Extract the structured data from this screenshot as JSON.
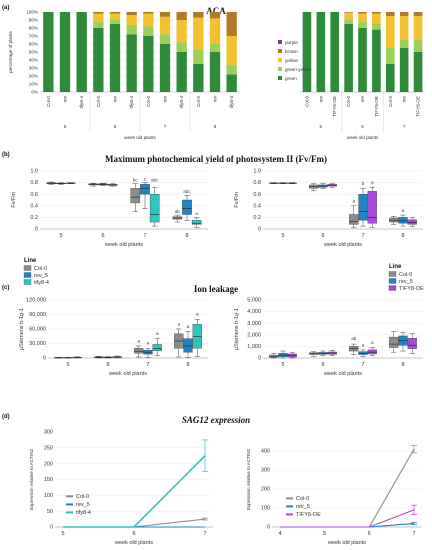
{
  "panel_labels": [
    "(a)",
    "(b)",
    "(c)",
    "(d)"
  ],
  "colors": {
    "purple": "#7f3f98",
    "brown": "#b07a2a",
    "yellow": "#f2c230",
    "green_yellow": "#9cd05a",
    "green": "#2e8b3a",
    "col0": "#8c8c8c",
    "rev": "#1f84c6",
    "tifyOE": "#a64bd8",
    "tify84": "#2ec7c0"
  },
  "chart_data": [
    {
      "id": "aca_left",
      "type": "bar",
      "stacked": true,
      "title": "ACA",
      "ylabel": "percentage of plants",
      "xlabel": "week old plants",
      "ylim": [
        0,
        100
      ],
      "yticks": [
        "0%",
        "10%",
        "20%",
        "30%",
        "40%",
        "50%",
        "60%",
        "70%",
        "80%",
        "90%",
        "100%"
      ],
      "groups": [
        "5",
        "6",
        "7",
        "8"
      ],
      "categories": [
        "Col-0",
        "rev",
        "tify8-4",
        "Col-0",
        "rev",
        "tify8-4",
        "Col-0",
        "rev",
        "tify8-4",
        "Col-0",
        "rev",
        "tify8-4"
      ],
      "series": [
        {
          "name": "green",
          "values": [
            100,
            100,
            100,
            80,
            85,
            72,
            70,
            60,
            50,
            35,
            50,
            22
          ]
        },
        {
          "name": "green-yellow",
          "values": [
            0,
            0,
            0,
            8,
            6,
            12,
            12,
            12,
            12,
            18,
            10,
            12
          ]
        },
        {
          "name": "yellow",
          "values": [
            0,
            0,
            0,
            10,
            7,
            12,
            16,
            22,
            28,
            40,
            32,
            36
          ]
        },
        {
          "name": "brown",
          "values": [
            0,
            0,
            0,
            2,
            2,
            4,
            2,
            6,
            10,
            7,
            8,
            30
          ]
        },
        {
          "name": "purple",
          "values": [
            0,
            0,
            0,
            0,
            0,
            0,
            0,
            0,
            0,
            0,
            0,
            0
          ]
        }
      ]
    },
    {
      "id": "aca_right",
      "type": "bar",
      "stacked": true,
      "xlabel": "week old plants",
      "ylim": [
        0,
        100
      ],
      "groups": [
        "5",
        "6",
        "7"
      ],
      "categories": [
        "Col-0",
        "rev",
        "TIFY8-OE",
        "Col-0",
        "rev",
        "TIFY8-OE",
        "Col-0",
        "rev",
        "TIFY8-OE"
      ],
      "series": [
        {
          "name": "green",
          "values": [
            100,
            100,
            100,
            85,
            80,
            78,
            35,
            55,
            50
          ]
        },
        {
          "name": "green-yellow",
          "values": [
            0,
            0,
            0,
            5,
            8,
            8,
            20,
            10,
            15
          ]
        },
        {
          "name": "yellow",
          "values": [
            0,
            0,
            0,
            9,
            10,
            12,
            40,
            30,
            30
          ]
        },
        {
          "name": "brown",
          "values": [
            0,
            0,
            0,
            1,
            2,
            2,
            5,
            5,
            5
          ]
        },
        {
          "name": "purple",
          "values": [
            0,
            0,
            0,
            0,
            0,
            0,
            0,
            0,
            0
          ]
        }
      ],
      "legend": [
        "purple",
        "brown",
        "yellow",
        "green-yellow",
        "green"
      ]
    },
    {
      "id": "fvfm_left",
      "type": "box",
      "title": "Maximum photochemical yield of photosystem II (Fv/Fm)",
      "ylabel": "Fv/Fm",
      "xlabel": "week old plants",
      "ylim": [
        0,
        1.0
      ],
      "yticks": [
        "0",
        "0.2",
        "0.4",
        "0.6",
        "0.8",
        "1.0"
      ],
      "groups": [
        "5",
        "6",
        "7",
        "8"
      ],
      "legend_title": "Line",
      "legend": [
        "Col-0",
        "rev_5",
        "tify8-4"
      ],
      "boxes": [
        {
          "g": 0,
          "s": 0,
          "min": 0.77,
          "q1": 0.78,
          "med": 0.79,
          "q3": 0.8,
          "max": 0.81
        },
        {
          "g": 0,
          "s": 1,
          "min": 0.77,
          "q1": 0.78,
          "med": 0.785,
          "q3": 0.79,
          "max": 0.8
        },
        {
          "g": 0,
          "s": 2,
          "min": 0.78,
          "q1": 0.785,
          "med": 0.79,
          "q3": 0.795,
          "max": 0.8
        },
        {
          "g": 1,
          "s": 0,
          "min": 0.74,
          "q1": 0.76,
          "med": 0.77,
          "q3": 0.78,
          "max": 0.79
        },
        {
          "g": 1,
          "s": 1,
          "min": 0.75,
          "q1": 0.76,
          "med": 0.77,
          "q3": 0.78,
          "max": 0.79
        },
        {
          "g": 1,
          "s": 2,
          "min": 0.74,
          "q1": 0.75,
          "med": 0.76,
          "q3": 0.77,
          "max": 0.78
        },
        {
          "g": 2,
          "s": 0,
          "min": 0.3,
          "q1": 0.45,
          "med": 0.55,
          "q3": 0.7,
          "max": 0.78
        },
        {
          "g": 2,
          "s": 1,
          "min": 0.35,
          "q1": 0.6,
          "med": 0.7,
          "q3": 0.77,
          "max": 0.8
        },
        {
          "g": 2,
          "s": 2,
          "min": 0.05,
          "q1": 0.12,
          "med": 0.25,
          "q3": 0.6,
          "max": 0.72
        },
        {
          "g": 3,
          "s": 0,
          "min": 0.12,
          "q1": 0.17,
          "med": 0.19,
          "q3": 0.21,
          "max": 0.24
        },
        {
          "g": 3,
          "s": 1,
          "min": 0.15,
          "q1": 0.25,
          "med": 0.35,
          "q3": 0.5,
          "max": 0.58
        },
        {
          "g": 3,
          "s": 2,
          "min": 0.03,
          "q1": 0.08,
          "med": 0.1,
          "q3": 0.15,
          "max": 0.2
        }
      ],
      "annotations": [
        {
          "g": 2,
          "s": 0,
          "text": "bc",
          "y": 0.8
        },
        {
          "g": 2,
          "s": 1,
          "text": "c",
          "y": 0.82
        },
        {
          "g": 2,
          "s": 2,
          "text": "abc",
          "y": 0.8
        },
        {
          "g": 3,
          "s": 0,
          "text": "ab",
          "y": 0.26
        },
        {
          "g": 3,
          "s": 1,
          "text": "abc",
          "y": 0.6
        },
        {
          "g": 3,
          "s": 2,
          "text": "a",
          "y": 0.22
        }
      ]
    },
    {
      "id": "fvfm_right",
      "type": "box",
      "ylabel": "Fv/Fm",
      "xlabel": "week old plants",
      "ylim": [
        0,
        1.0
      ],
      "yticks": [
        "0",
        "0.2",
        "0.4",
        "0.6",
        "0.8",
        "1.0"
      ],
      "groups": [
        "5",
        "6",
        "7",
        "8"
      ],
      "legend_title": "Line",
      "legend": [
        "Col-0",
        "rev_5",
        "TIFY8-OE"
      ],
      "boxes": [
        {
          "g": 0,
          "s": 0,
          "min": 0.78,
          "q1": 0.785,
          "med": 0.79,
          "q3": 0.795,
          "max": 0.8
        },
        {
          "g": 0,
          "s": 1,
          "min": 0.78,
          "q1": 0.785,
          "med": 0.79,
          "q3": 0.795,
          "max": 0.8
        },
        {
          "g": 0,
          "s": 2,
          "min": 0.78,
          "q1": 0.785,
          "med": 0.79,
          "q3": 0.795,
          "max": 0.8
        },
        {
          "g": 1,
          "s": 0,
          "min": 0.66,
          "q1": 0.7,
          "med": 0.73,
          "q3": 0.76,
          "max": 0.78
        },
        {
          "g": 1,
          "s": 1,
          "min": 0.7,
          "q1": 0.72,
          "med": 0.74,
          "q3": 0.76,
          "max": 0.78
        },
        {
          "g": 1,
          "s": 2,
          "min": 0.72,
          "q1": 0.74,
          "med": 0.75,
          "q3": 0.77,
          "max": 0.78
        },
        {
          "g": 2,
          "s": 0,
          "min": 0.03,
          "q1": 0.08,
          "med": 0.13,
          "q3": 0.25,
          "max": 0.4
        },
        {
          "g": 2,
          "s": 1,
          "min": 0.05,
          "q1": 0.15,
          "med": 0.3,
          "q3": 0.6,
          "max": 0.7
        },
        {
          "g": 2,
          "s": 2,
          "min": 0.03,
          "q1": 0.1,
          "med": 0.2,
          "q3": 0.65,
          "max": 0.72
        },
        {
          "g": 3,
          "s": 0,
          "min": 0.08,
          "q1": 0.12,
          "med": 0.15,
          "q3": 0.19,
          "max": 0.22
        },
        {
          "g": 3,
          "s": 1,
          "min": 0.05,
          "q1": 0.1,
          "med": 0.14,
          "q3": 0.2,
          "max": 0.24
        },
        {
          "g": 3,
          "s": 2,
          "min": 0.04,
          "q1": 0.08,
          "med": 0.11,
          "q3": 0.16,
          "max": 0.2
        }
      ],
      "annotations": [
        {
          "g": 2,
          "s": 0,
          "text": "a",
          "y": 0.44
        },
        {
          "g": 2,
          "s": 1,
          "text": "b",
          "y": 0.74
        },
        {
          "g": 2,
          "s": 2,
          "text": "a",
          "y": 0.76
        },
        {
          "g": 3,
          "s": 1,
          "text": "a",
          "y": 0.28
        }
      ]
    },
    {
      "id": "ion_left",
      "type": "box",
      "title": "Ion leakage",
      "ylabel": "µSiemens h-1g-1",
      "xlabel": "week old plants",
      "ylim": [
        0,
        120000
      ],
      "yticks": [
        "0",
        "30,000",
        "60,000",
        "90,000",
        "120,000"
      ],
      "groups": [
        "5",
        "6",
        "7",
        "8"
      ],
      "boxes": [
        {
          "g": 0,
          "s": 0,
          "min": 0,
          "q1": 300,
          "med": 600,
          "q3": 1000,
          "max": 1500
        },
        {
          "g": 0,
          "s": 1,
          "min": 0,
          "q1": 300,
          "med": 500,
          "q3": 900,
          "max": 1300
        },
        {
          "g": 0,
          "s": 2,
          "min": 0,
          "q1": 500,
          "med": 1000,
          "q3": 1800,
          "max": 2500
        },
        {
          "g": 1,
          "s": 0,
          "min": 0,
          "q1": 800,
          "med": 1500,
          "q3": 2500,
          "max": 3500
        },
        {
          "g": 1,
          "s": 1,
          "min": 0,
          "q1": 600,
          "med": 1200,
          "q3": 2000,
          "max": 3000
        },
        {
          "g": 1,
          "s": 2,
          "min": 0,
          "q1": 1000,
          "med": 2000,
          "q3": 3000,
          "max": 4000
        },
        {
          "g": 2,
          "s": 0,
          "min": 2000,
          "q1": 10000,
          "med": 14000,
          "q3": 20000,
          "max": 25000
        },
        {
          "g": 2,
          "s": 1,
          "min": 1000,
          "q1": 8000,
          "med": 12000,
          "q3": 16000,
          "max": 20000
        },
        {
          "g": 2,
          "s": 2,
          "min": 5000,
          "q1": 15000,
          "med": 20000,
          "q3": 28000,
          "max": 40000
        },
        {
          "g": 3,
          "s": 0,
          "min": 2000,
          "q1": 20000,
          "med": 35000,
          "q3": 50000,
          "max": 60000
        },
        {
          "g": 3,
          "s": 1,
          "min": 1000,
          "q1": 12000,
          "med": 25000,
          "q3": 40000,
          "max": 55000
        },
        {
          "g": 3,
          "s": 2,
          "min": 3000,
          "q1": 20000,
          "med": 45000,
          "q3": 70000,
          "max": 80000
        }
      ],
      "annotations": [
        {
          "g": 2,
          "s": 0,
          "text": "a",
          "y": 30000
        },
        {
          "g": 2,
          "s": 1,
          "text": "a",
          "y": 26000
        },
        {
          "g": 2,
          "s": 2,
          "text": "a",
          "y": 46000
        },
        {
          "g": 3,
          "s": 0,
          "text": "a",
          "y": 65000
        },
        {
          "g": 3,
          "s": 1,
          "text": "a",
          "y": 60000
        },
        {
          "g": 3,
          "s": 2,
          "text": "a",
          "y": 86000
        }
      ]
    },
    {
      "id": "ion_right",
      "type": "box",
      "ylabel": "µSiemens h-1g-1",
      "xlabel": "week old plants",
      "ylim": [
        0,
        5000
      ],
      "yticks": [
        "0",
        "1,000",
        "2,000",
        "3,000",
        "4,000",
        "5,000"
      ],
      "groups": [
        "5",
        "6",
        "7",
        "8"
      ],
      "boxes": [
        {
          "g": 0,
          "s": 0,
          "min": 0,
          "q1": 50,
          "med": 150,
          "q3": 250,
          "max": 400
        },
        {
          "g": 0,
          "s": 1,
          "min": 0,
          "q1": 100,
          "med": 250,
          "q3": 400,
          "max": 600
        },
        {
          "g": 0,
          "s": 2,
          "min": 0,
          "q1": 80,
          "med": 200,
          "q3": 350,
          "max": 500
        },
        {
          "g": 1,
          "s": 0,
          "min": 150,
          "q1": 300,
          "med": 380,
          "q3": 450,
          "max": 550
        },
        {
          "g": 1,
          "s": 1,
          "min": 200,
          "q1": 320,
          "med": 400,
          "q3": 480,
          "max": 600
        },
        {
          "g": 1,
          "s": 2,
          "min": 200,
          "q1": 330,
          "med": 420,
          "q3": 520,
          "max": 650
        },
        {
          "g": 2,
          "s": 0,
          "min": 300,
          "q1": 600,
          "med": 800,
          "q3": 1000,
          "max": 1200
        },
        {
          "g": 2,
          "s": 1,
          "min": 150,
          "q1": 300,
          "med": 400,
          "q3": 550,
          "max": 700
        },
        {
          "g": 2,
          "s": 2,
          "min": 200,
          "q1": 350,
          "med": 500,
          "q3": 700,
          "max": 900
        },
        {
          "g": 3,
          "s": 0,
          "min": 500,
          "q1": 900,
          "med": 1200,
          "q3": 1800,
          "max": 2300
        },
        {
          "g": 3,
          "s": 1,
          "min": 600,
          "q1": 1100,
          "med": 1500,
          "q3": 1900,
          "max": 2200
        },
        {
          "g": 3,
          "s": 2,
          "min": 400,
          "q1": 800,
          "med": 1100,
          "q3": 1700,
          "max": 2100
        }
      ],
      "annotations": [
        {
          "g": 2,
          "s": 0,
          "text": "ab",
          "y": 1450
        },
        {
          "g": 2,
          "s": 1,
          "text": "a",
          "y": 900
        },
        {
          "g": 2,
          "s": 2,
          "text": "a",
          "y": 1100
        }
      ]
    },
    {
      "id": "sag_left",
      "type": "line",
      "title": "SAG12 expression",
      "ylabel": "Expression relative to ACTIN2",
      "xlabel": "week old plants",
      "ylim": [
        0,
        300
      ],
      "yticks": [
        "0",
        "50",
        "100",
        "150",
        "200",
        "250",
        "300"
      ],
      "x": [
        "5",
        "6",
        "7"
      ],
      "series": [
        {
          "name": "Col-0",
          "values": [
            0,
            0,
            25
          ],
          "err": [
            0,
            0,
            3
          ]
        },
        {
          "name": "rev_5",
          "values": [
            0,
            0,
            0
          ],
          "err": [
            0,
            0,
            0
          ]
        },
        {
          "name": "tify8-4",
          "values": [
            0,
            0,
            225
          ],
          "err": [
            0,
            0,
            50
          ]
        }
      ]
    },
    {
      "id": "sag_right",
      "type": "line",
      "ylabel": "Expression relative to ACTIN2",
      "xlabel": "week old plants",
      "ylim": [
        0,
        500
      ],
      "yticks": [
        "0",
        "100",
        "200",
        "300",
        "400"
      ],
      "xticks": [
        "4",
        "5",
        "6",
        "7"
      ],
      "x": [
        "4",
        "5",
        "6",
        "7"
      ],
      "series": [
        {
          "name": "Col-0",
          "values": [
            0,
            0,
            0,
            410
          ],
          "err": [
            0,
            0,
            0,
            20
          ]
        },
        {
          "name": "rev_5",
          "values": [
            0,
            0,
            0,
            18
          ],
          "err": [
            0,
            0,
            0,
            5
          ]
        },
        {
          "name": "TIFY8-OE",
          "values": [
            0,
            0,
            0,
            90
          ],
          "err": [
            0,
            0,
            0,
            25
          ]
        }
      ]
    }
  ]
}
